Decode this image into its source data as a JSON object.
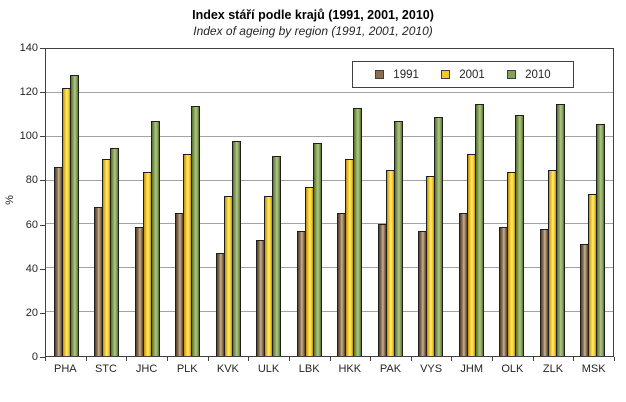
{
  "chart": {
    "title": "Index stáří podle krajů (1991, 2001, 2010)",
    "subtitle": "Index of ageing by region (1991, 2001, 2010)",
    "ylabel": "%"
  },
  "chart_data": {
    "type": "bar",
    "title": "Index stáří podle krajů (1991, 2001, 2010)",
    "subtitle": "Index of ageing by region (1991, 2001, 2010)",
    "xlabel": "",
    "ylabel": "%",
    "ylim": [
      0,
      140
    ],
    "ytick_step": 20,
    "ytick_labels": [
      "0",
      "20",
      "40",
      "60",
      "80",
      "100",
      "120",
      "140"
    ],
    "grid": "horizontal",
    "gridline_color": "#a3a3a3",
    "legend_position": "top-right-inside",
    "categories": [
      "PHA",
      "STC",
      "JHC",
      "PLK",
      "KVK",
      "ULK",
      "LBK",
      "HKK",
      "PAK",
      "VYS",
      "JHM",
      "OLK",
      "ZLK",
      "MSK"
    ],
    "series": [
      {
        "name": "1991",
        "color_dark": "#54412c",
        "color_base": "#8a6f52",
        "color_light": "#c9b190",
        "values": [
          86,
          68,
          59,
          65,
          47,
          53,
          57,
          65,
          60,
          57,
          65,
          59,
          58,
          51
        ]
      },
      {
        "name": "2001",
        "color_dark": "#c18d0e",
        "color_base": "#f2c72e",
        "color_light": "#ffef6e",
        "values": [
          122,
          90,
          84,
          92,
          73,
          73,
          77,
          90,
          85,
          82,
          92,
          84,
          85,
          74
        ]
      },
      {
        "name": "2010",
        "color_dark": "#54702f",
        "color_base": "#85a158",
        "color_light": "#b3c687",
        "values": [
          128,
          95,
          107,
          114,
          98,
          91,
          97,
          113,
          107,
          109,
          115,
          110,
          115,
          106
        ]
      }
    ]
  }
}
